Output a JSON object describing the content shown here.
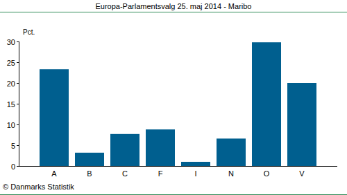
{
  "chart_data": {
    "type": "bar",
    "title": "Europa-Parlamentsvalg 25. maj 2014 - Maribo",
    "ylabel": "Pct.",
    "source": "© Danmarks Statistik",
    "categories": [
      "A",
      "B",
      "C",
      "F",
      "I",
      "N",
      "O",
      "V"
    ],
    "values": [
      23.3,
      3.2,
      7.7,
      8.8,
      1.0,
      6.6,
      29.8,
      20.0
    ],
    "color": "#005f8f",
    "ylim": [
      0,
      30
    ],
    "yticks": [
      0,
      5,
      10,
      15,
      20,
      25,
      30
    ],
    "grid": false
  }
}
